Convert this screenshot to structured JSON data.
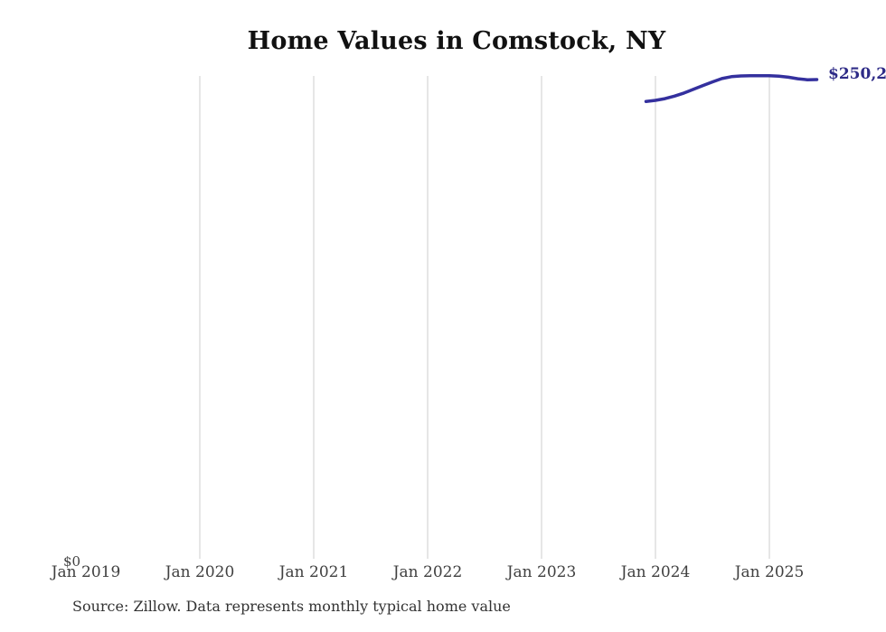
{
  "title": "Home Values in Comstock, NY",
  "source_note": "Source: Zillow. Data represents monthly typical home value",
  "y_axis": {
    "zero_label": "$0"
  },
  "end_label": "$250,2",
  "colors": {
    "background": "#ffffff",
    "title": "#111111",
    "axis_text": "#404040",
    "source_text": "#333333",
    "gridline": "#cccccc",
    "line": "#34309e",
    "end_label": "#2e2b87"
  },
  "chart_data": {
    "type": "line",
    "title": "Home Values in Comstock, NY",
    "xlabel": "",
    "ylabel": "",
    "ylim": [
      0,
      265000
    ],
    "x_ticks": [
      "Jan 2019",
      "Jan 2020",
      "Jan 2021",
      "Jan 2022",
      "Jan 2023",
      "Jan 2024",
      "Jan 2025"
    ],
    "gridline_years": [
      2020,
      2021,
      2022,
      2023,
      2024,
      2025
    ],
    "legend": "none",
    "grid": "vertical-only",
    "end_label": "$250,2",
    "series": [
      {
        "name": "Typical home value",
        "points": [
          [
            "2023-12",
            238800
          ],
          [
            "2024-01",
            239400
          ],
          [
            "2024-02",
            240300
          ],
          [
            "2024-03",
            241600
          ],
          [
            "2024-04",
            243200
          ],
          [
            "2024-05",
            245100
          ],
          [
            "2024-06",
            247100
          ],
          [
            "2024-07",
            249000
          ],
          [
            "2024-08",
            250700
          ],
          [
            "2024-09",
            251700
          ],
          [
            "2024-10",
            252100
          ],
          [
            "2024-11",
            252200
          ],
          [
            "2024-12",
            252200
          ],
          [
            "2025-01",
            252200
          ],
          [
            "2025-02",
            252000
          ],
          [
            "2025-03",
            251400
          ],
          [
            "2025-04",
            250600
          ],
          [
            "2025-05",
            250100
          ],
          [
            "2025-06",
            250200
          ]
        ]
      }
    ]
  }
}
